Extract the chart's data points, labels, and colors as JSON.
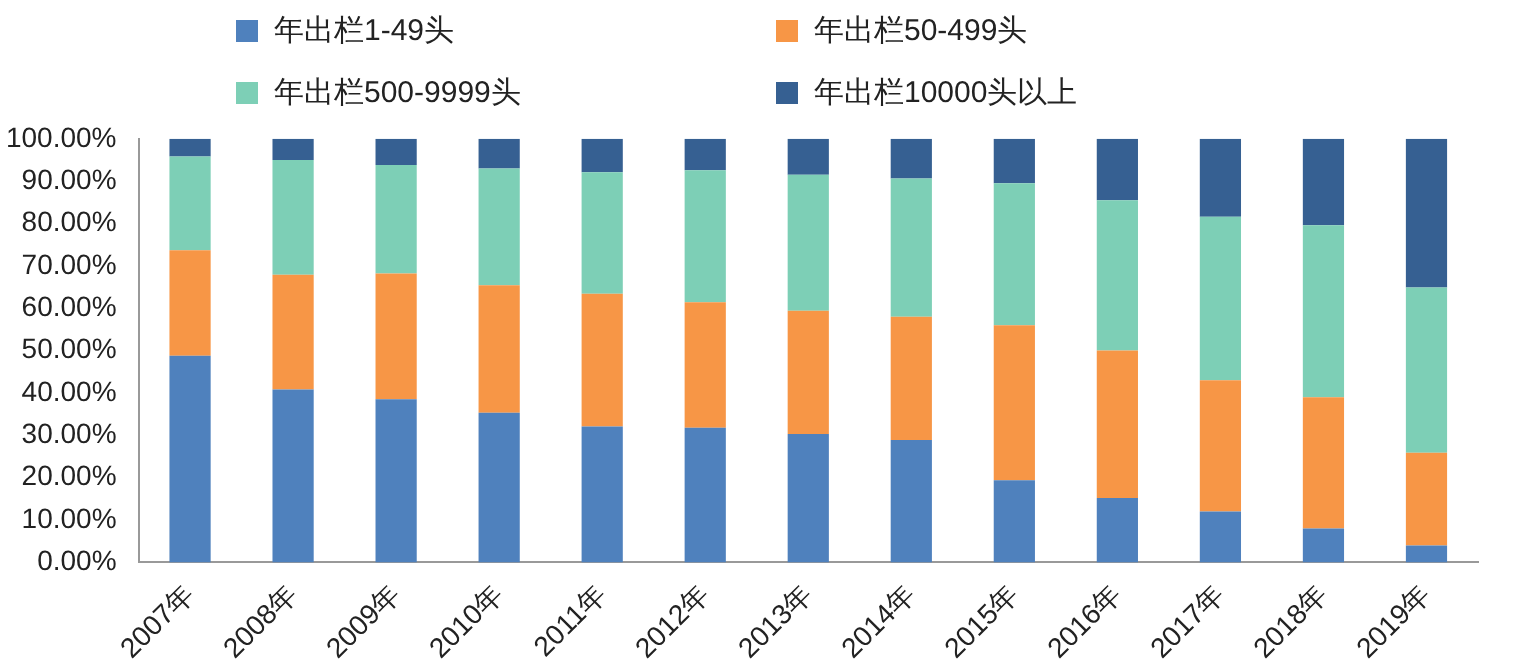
{
  "chart_data": {
    "type": "bar",
    "stacked": true,
    "legend": "top",
    "categories": [
      "2007年",
      "2008年",
      "2009年",
      "2010年",
      "2011年",
      "2012年",
      "2013年",
      "2014年",
      "2015年",
      "2016年",
      "2017年",
      "2018年",
      "2019年"
    ],
    "series": [
      {
        "name": "年出栏1-49头",
        "color": "#4f81bd",
        "values": [
          48.8,
          40.8,
          38.5,
          35.3,
          32.1,
          31.8,
          30.3,
          28.9,
          19.4,
          15.2,
          12.0,
          8.0,
          4.0
        ]
      },
      {
        "name": "年出栏50-499头",
        "color": "#f79646",
        "values": [
          24.9,
          27.1,
          29.7,
          30.1,
          31.3,
          29.6,
          29.1,
          29.1,
          36.6,
          34.8,
          31.0,
          31.0,
          21.9
        ]
      },
      {
        "name": "年出栏500-9999头",
        "color": "#7dcfb6",
        "values": [
          22.1,
          27.1,
          25.6,
          27.6,
          28.7,
          31.2,
          32.1,
          32.6,
          33.5,
          35.5,
          38.6,
          40.6,
          39.0
        ]
      },
      {
        "name": "年出栏10000头以上",
        "color": "#366092",
        "values": [
          4.2,
          5.0,
          6.2,
          7.0,
          7.9,
          7.4,
          8.5,
          9.4,
          10.5,
          14.5,
          18.4,
          20.4,
          35.1
        ]
      }
    ],
    "ylim": [
      0,
      100
    ],
    "yticks": [
      {
        "value": 0,
        "label": "0.00%"
      },
      {
        "value": 10,
        "label": "10.00%"
      },
      {
        "value": 20,
        "label": "20.00%"
      },
      {
        "value": 30,
        "label": "30.00%"
      },
      {
        "value": 40,
        "label": "40.00%"
      },
      {
        "value": 50,
        "label": "50.00%"
      },
      {
        "value": 60,
        "label": "60.00%"
      },
      {
        "value": 70,
        "label": "70.00%"
      },
      {
        "value": 80,
        "label": "80.00%"
      },
      {
        "value": 90,
        "label": "90.00%"
      },
      {
        "value": 100,
        "label": "100.00%"
      }
    ],
    "grid": false
  }
}
